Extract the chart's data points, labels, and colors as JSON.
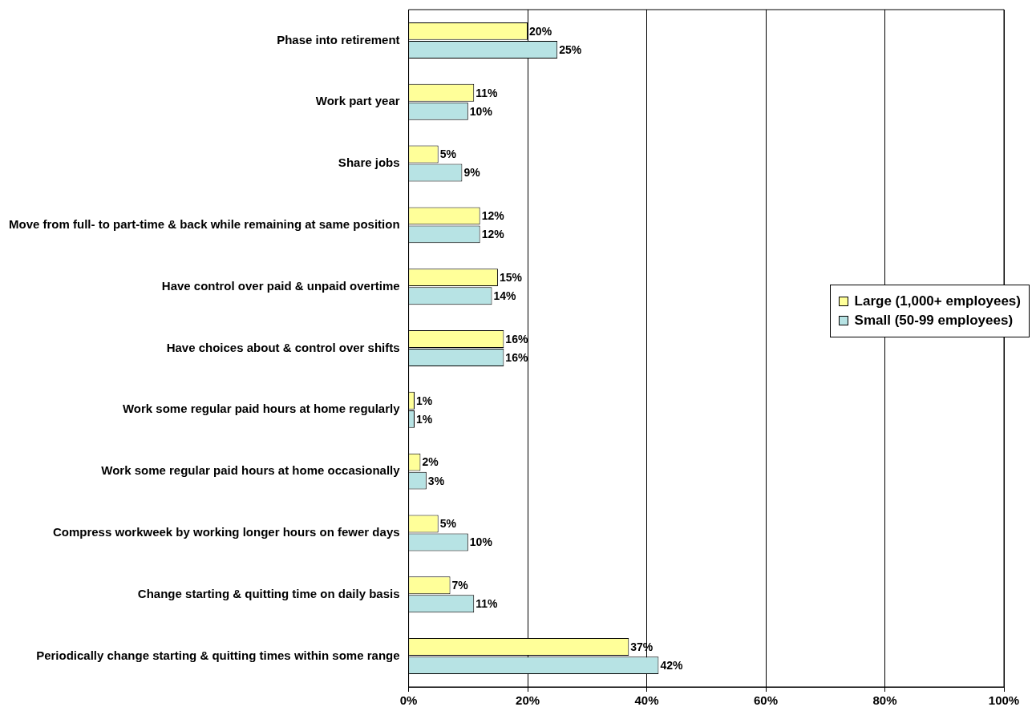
{
  "chart_data": {
    "type": "bar",
    "orientation": "horizontal",
    "categories": [
      "Phase into retirement",
      "Work part year",
      "Share jobs",
      "Move from full- to part-time & back while remaining at same position",
      "Have control over paid & unpaid overtime",
      "Have choices about & control over shifts",
      "Work some regular paid hours at home regularly",
      "Work some regular paid hours at home occasionally",
      "Compress workweek by working longer hours on fewer days",
      "Change starting & quitting time on daily basis",
      "Periodically change starting & quitting times within some range"
    ],
    "series": [
      {
        "name": "Large (1,000+ employees)",
        "color": "#ffff99",
        "values": [
          20,
          11,
          5,
          12,
          15,
          16,
          1,
          2,
          5,
          7,
          37
        ],
        "value_labels": [
          "20%",
          "11%",
          "5%",
          "12%",
          "15%",
          "16%",
          "1%",
          "2%",
          "5%",
          "7%",
          "37%"
        ]
      },
      {
        "name": "Small (50-99 employees)",
        "color": "#b7e3e4",
        "values": [
          25,
          10,
          9,
          12,
          14,
          16,
          1,
          3,
          10,
          11,
          42
        ],
        "value_labels": [
          "25%",
          "10%",
          "9%",
          "12%",
          "14%",
          "16%",
          "1%",
          "3%",
          "10%",
          "11%",
          "42%"
        ]
      }
    ],
    "xlim": [
      0,
      100
    ],
    "xticks": [
      {
        "value": 0,
        "label": "0%"
      },
      {
        "value": 20,
        "label": "20%"
      },
      {
        "value": 40,
        "label": "40%"
      },
      {
        "value": 60,
        "label": "60%"
      },
      {
        "value": 80,
        "label": "80%"
      },
      {
        "value": 100,
        "label": "100%"
      }
    ],
    "grid": "x",
    "legend": "right"
  }
}
